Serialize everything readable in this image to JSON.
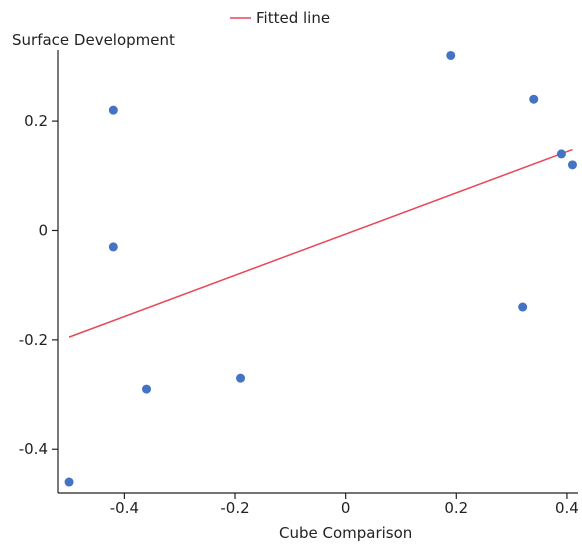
{
  "chart_data": {
    "type": "scatter",
    "xlabel": "Cube Comparison",
    "ylabel": "Surface Development",
    "xlim": [
      -0.52,
      0.42
    ],
    "ylim": [
      -0.48,
      0.33
    ],
    "x_ticks": [
      -0.4,
      -0.2,
      0,
      0.2,
      0.4
    ],
    "x_tick_labels": [
      "-0.4",
      "-0.2",
      "0",
      "0.2",
      "0.4"
    ],
    "y_ticks": [
      -0.4,
      -0.2,
      0,
      0.2
    ],
    "y_tick_labels": [
      "-0.4",
      "-0.2",
      "0",
      "0.2"
    ],
    "grid": false,
    "legend": {
      "position": "top-center",
      "entries": [
        "Fitted line"
      ]
    },
    "series": [
      {
        "kind": "points",
        "color": "#4472c4",
        "points": [
          {
            "x": -0.5,
            "y": -0.46
          },
          {
            "x": -0.42,
            "y": 0.22
          },
          {
            "x": -0.42,
            "y": -0.03
          },
          {
            "x": -0.36,
            "y": -0.29
          },
          {
            "x": -0.19,
            "y": -0.27
          },
          {
            "x": 0.19,
            "y": 0.32
          },
          {
            "x": 0.32,
            "y": -0.14
          },
          {
            "x": 0.34,
            "y": 0.24
          },
          {
            "x": 0.39,
            "y": 0.14
          },
          {
            "x": 0.41,
            "y": 0.12
          }
        ]
      },
      {
        "name": "Fitted line",
        "kind": "line",
        "color": "#e8475a",
        "points": [
          {
            "x": -0.5,
            "y": -0.195
          },
          {
            "x": 0.41,
            "y": 0.148
          }
        ]
      }
    ]
  }
}
